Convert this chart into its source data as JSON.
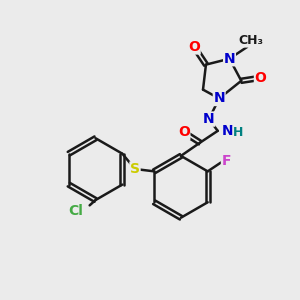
{
  "bg_color": "#ebebeb",
  "bond_color": "#1a1a1a",
  "bond_width": 1.8,
  "atom_colors": {
    "O": "#ff0000",
    "N": "#0000cc",
    "S": "#cccc00",
    "F": "#cc44cc",
    "Cl": "#44aa44",
    "C": "#1a1a1a",
    "H": "#008080"
  },
  "font_size": 10,
  "ring_font_size": 10,
  "label_font_size": 10
}
